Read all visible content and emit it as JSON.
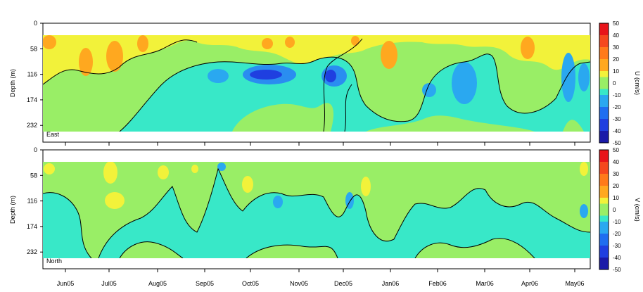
{
  "chart_data": [
    {
      "type": "heatmap",
      "panel_label": "East",
      "ylabel": "Depth (m)",
      "colorbar_label": "U (cm/s)",
      "y_ticks": [
        0,
        58,
        116,
        174,
        232
      ],
      "ylim": [
        0,
        270
      ],
      "data_depth_range": [
        15,
        240
      ],
      "x_ticks": [
        "Jun05",
        "Jul05",
        "Aug05",
        "Sep05",
        "Oct05",
        "Nov05",
        "Dec05",
        "Jan06",
        "Feb06",
        "Mar06",
        "Apr06",
        "May06"
      ],
      "colorbar_levels": [
        50,
        40,
        30,
        20,
        10,
        0,
        -10,
        -20,
        -30,
        -40,
        -50
      ],
      "features": [
        {
          "month": 0.0,
          "depth": 40,
          "value": 18
        },
        {
          "month": 0.85,
          "depth": 70,
          "value": 22
        },
        {
          "month": 1.3,
          "depth": 60,
          "value": 24
        },
        {
          "month": 1.7,
          "depth": 50,
          "value": 14
        },
        {
          "month": 4.2,
          "depth": 115,
          "value": -38
        },
        {
          "month": 5.3,
          "depth": 118,
          "value": -32
        },
        {
          "month": 6.6,
          "depth": 55,
          "value": 22
        },
        {
          "month": 7.7,
          "depth": 120,
          "value": -18
        },
        {
          "month": 8.3,
          "depth": 130,
          "value": -22
        },
        {
          "month": 9.0,
          "depth": 50,
          "value": 12
        },
        {
          "month": 10.4,
          "depth": 45,
          "value": 15
        },
        {
          "month": 10.8,
          "depth": 140,
          "value": -15
        }
      ]
    },
    {
      "type": "heatmap",
      "panel_label": "North",
      "ylabel": "Depth (m)",
      "colorbar_label": "V (cm/s)",
      "y_ticks": [
        0,
        58,
        116,
        174,
        232
      ],
      "ylim": [
        0,
        270
      ],
      "data_depth_range": [
        15,
        240
      ],
      "x_ticks": [
        "Jun05",
        "Jul05",
        "Aug05",
        "Sep05",
        "Oct05",
        "Nov05",
        "Dec05",
        "Jan06",
        "Feb06",
        "Mar06",
        "Apr06",
        "May06"
      ],
      "colorbar_levels": [
        50,
        40,
        30,
        20,
        10,
        0,
        -10,
        -20,
        -30,
        -40,
        -50
      ],
      "features": [
        {
          "month": 1.2,
          "depth": 45,
          "value": 12
        },
        {
          "month": 1.5,
          "depth": 120,
          "value": 10
        },
        {
          "month": 3.6,
          "depth": 90,
          "value": -8
        },
        {
          "month": 4.5,
          "depth": 120,
          "value": -15
        },
        {
          "month": 5.1,
          "depth": 70,
          "value": 10
        },
        {
          "month": 6.2,
          "depth": 120,
          "value": -15
        },
        {
          "month": 6.4,
          "depth": 70,
          "value": 12
        },
        {
          "month": 10.9,
          "depth": 50,
          "value": 12
        }
      ]
    }
  ]
}
